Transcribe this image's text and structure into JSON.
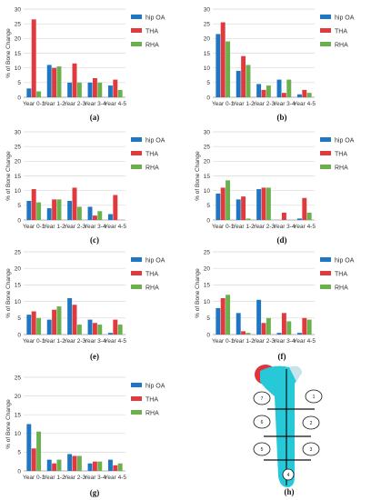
{
  "colors": {
    "hip OA": "#1f77c4",
    "THA": "#e0393e",
    "RHA": "#6ab04c"
  },
  "chart_data": [
    {
      "id": "a",
      "type": "bar",
      "caption": "(a)",
      "ylabel": "% of Bone Change",
      "ylim": [
        0,
        30
      ],
      "yticks": [
        0,
        5,
        10,
        15,
        20,
        25,
        30
      ],
      "categories": [
        "Year 0-1",
        "Year 1-2",
        "Year 2-3",
        "Year 3-4",
        "Year 4-5"
      ],
      "legend": [
        "hip OA",
        "THA",
        "RHA"
      ],
      "series": [
        {
          "name": "hip OA",
          "values": [
            3,
            11,
            5,
            5,
            4
          ]
        },
        {
          "name": "THA",
          "values": [
            26.5,
            10,
            11.5,
            6.5,
            6
          ]
        },
        {
          "name": "RHA",
          "values": [
            2,
            10.5,
            5,
            5,
            2.5
          ]
        }
      ]
    },
    {
      "id": "b",
      "type": "bar",
      "caption": "(b)",
      "ylabel": "",
      "ylim": [
        0,
        30
      ],
      "yticks": [
        0,
        5,
        10,
        15,
        20,
        25,
        30
      ],
      "categories": [
        "Year 0-1",
        "Year 1-2",
        "Year 2-3",
        "Year 3-4",
        "Year 4-5"
      ],
      "legend": [
        "hip OA",
        "THA",
        "RHA"
      ],
      "series": [
        {
          "name": "hip OA",
          "values": [
            21.5,
            9,
            4.5,
            6,
            1
          ]
        },
        {
          "name": "THA",
          "values": [
            25.5,
            14,
            2.5,
            1.5,
            2.5
          ]
        },
        {
          "name": "RHA",
          "values": [
            19,
            11,
            4,
            6,
            1.5
          ]
        }
      ]
    },
    {
      "id": "c",
      "type": "bar",
      "caption": "(c)",
      "ylabel": "% of Bone Change",
      "ylim": [
        0,
        30
      ],
      "yticks": [
        0,
        5,
        10,
        15,
        20,
        25,
        30
      ],
      "categories": [
        "Year 0-1",
        "Year 1-2",
        "Year 2-3",
        "Year 3-4",
        "Year 4-5"
      ],
      "legend": [
        "hip OA",
        "THA",
        "RHA"
      ],
      "series": [
        {
          "name": "hip OA",
          "values": [
            6.5,
            4,
            6.5,
            4.5,
            2
          ]
        },
        {
          "name": "THA",
          "values": [
            10.5,
            7,
            11,
            1.5,
            8.5
          ]
        },
        {
          "name": "RHA",
          "values": [
            6,
            7,
            4.5,
            3,
            0
          ]
        }
      ]
    },
    {
      "id": "d",
      "type": "bar",
      "caption": "(d)",
      "ylabel": "% of Bone Change",
      "ylim": [
        0,
        30
      ],
      "yticks": [
        0,
        5,
        10,
        15,
        20,
        25,
        30
      ],
      "categories": [
        "Year 0-1",
        "Year 1-2",
        "Year 2-3",
        "Year 3-4",
        "Year 4-5"
      ],
      "legend": [
        "hip OA",
        "THA",
        "RHA"
      ],
      "series": [
        {
          "name": "hip OA",
          "values": [
            9,
            7,
            10.5,
            0,
            0.5
          ]
        },
        {
          "name": "THA",
          "values": [
            11,
            8,
            11,
            2.5,
            7.5
          ]
        },
        {
          "name": "RHA",
          "values": [
            13.5,
            0.5,
            11,
            0,
            2.5
          ]
        }
      ]
    },
    {
      "id": "e",
      "type": "bar",
      "caption": "(e)",
      "ylabel": "% of Bone Change",
      "ylim": [
        0,
        25
      ],
      "yticks": [
        0,
        5,
        10,
        15,
        20,
        25
      ],
      "categories": [
        "Year 0-1",
        "Year 1-2",
        "Year 2-3",
        "Year 3-4",
        "Year 4-5"
      ],
      "legend": [
        "hip OA",
        "THA",
        "RHA"
      ],
      "series": [
        {
          "name": "hip OA",
          "values": [
            6,
            4.5,
            11,
            4.5,
            0.5
          ]
        },
        {
          "name": "THA",
          "values": [
            7,
            7.5,
            9,
            3.5,
            4.5
          ]
        },
        {
          "name": "RHA",
          "values": [
            5,
            8.5,
            3,
            3,
            3
          ]
        }
      ]
    },
    {
      "id": "f",
      "type": "bar",
      "caption": "(f)",
      "ylabel": "% of Bone Change",
      "ylim": [
        0,
        25
      ],
      "yticks": [
        0,
        5,
        10,
        15,
        20,
        25
      ],
      "categories": [
        "Year 0-1",
        "Year 1-2",
        "Year 2-3",
        "Year 3-4",
        "Year 4-5"
      ],
      "legend": [
        "hip OA",
        "THA",
        "RHA"
      ],
      "series": [
        {
          "name": "hip OA",
          "values": [
            8,
            6.5,
            10.5,
            0.5,
            0.5
          ]
        },
        {
          "name": "THA",
          "values": [
            11,
            1,
            3.5,
            6.5,
            5
          ]
        },
        {
          "name": "RHA",
          "values": [
            12,
            0.5,
            5,
            4,
            4.5
          ]
        }
      ]
    },
    {
      "id": "g",
      "type": "bar",
      "caption": "(g)",
      "ylabel": "% of Bone Change",
      "ylim": [
        0,
        25
      ],
      "yticks": [
        0,
        5,
        10,
        15,
        20,
        25
      ],
      "categories": [
        "Year 0-1",
        "Year 1-2",
        "Year 2-3",
        "Year 3-4",
        "Year 4-5"
      ],
      "legend": [
        "hip OA",
        "THA",
        "RHA"
      ],
      "series": [
        {
          "name": "hip OA",
          "values": [
            12.5,
            3,
            4.5,
            2,
            3
          ]
        },
        {
          "name": "THA",
          "values": [
            6,
            2,
            4,
            2.5,
            1.5
          ]
        },
        {
          "name": "RHA",
          "values": [
            10.5,
            3,
            4,
            2.5,
            2
          ]
        }
      ]
    }
  ],
  "femur": {
    "caption": "(h)",
    "zones": [
      "1",
      "2",
      "3",
      "4",
      "5",
      "6",
      "7"
    ]
  }
}
